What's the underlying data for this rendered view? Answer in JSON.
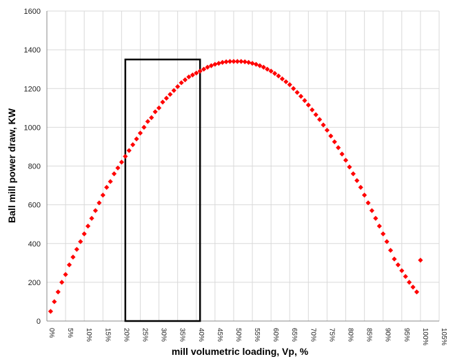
{
  "chart_data": {
    "type": "scatter",
    "title": "",
    "xlabel": "mill volumetric loading, Vp, %",
    "ylabel": "Ball mill power draw, KW",
    "xlim": [
      0,
      105
    ],
    "ylim": [
      0,
      1600
    ],
    "x_ticks": [
      "0%",
      "5%",
      "10%",
      "15%",
      "20%",
      "25%",
      "30%",
      "35%",
      "40%",
      "45%",
      "50%",
      "55%",
      "60%",
      "65%",
      "70%",
      "75%",
      "80%",
      "85%",
      "90%",
      "95%",
      "100%",
      "105%"
    ],
    "y_ticks": [
      "0",
      "200",
      "400",
      "600",
      "800",
      "1000",
      "1200",
      "1400",
      "1600"
    ],
    "grid": true,
    "series": [
      {
        "marker": "diamond",
        "color": "#ff0000",
        "x": [
          1,
          2,
          3,
          4,
          5,
          6,
          7,
          8,
          9,
          10,
          11,
          12,
          13,
          14,
          15,
          16,
          17,
          18,
          19,
          20,
          21,
          22,
          23,
          24,
          25,
          26,
          27,
          28,
          29,
          30,
          31,
          32,
          33,
          34,
          35,
          36,
          37,
          38,
          39,
          40,
          41,
          42,
          43,
          44,
          45,
          46,
          47,
          48,
          49,
          50,
          51,
          52,
          53,
          54,
          55,
          56,
          57,
          58,
          59,
          60,
          61,
          62,
          63,
          64,
          65,
          66,
          67,
          68,
          69,
          70,
          71,
          72,
          73,
          74,
          75,
          76,
          77,
          78,
          79,
          80,
          81,
          82,
          83,
          84,
          85,
          86,
          87,
          88,
          89,
          90,
          91,
          92,
          93,
          94,
          95,
          96,
          97,
          98,
          99,
          100
        ],
        "y": [
          50,
          100,
          150,
          200,
          240,
          290,
          330,
          370,
          410,
          450,
          490,
          530,
          570,
          610,
          650,
          690,
          720,
          760,
          790,
          820,
          850,
          880,
          910,
          940,
          970,
          1000,
          1030,
          1050,
          1080,
          1100,
          1130,
          1150,
          1170,
          1190,
          1210,
          1230,
          1245,
          1260,
          1270,
          1280,
          1290,
          1300,
          1310,
          1318,
          1325,
          1330,
          1335,
          1338,
          1340,
          1340,
          1340,
          1340,
          1338,
          1335,
          1330,
          1325,
          1318,
          1310,
          1300,
          1290,
          1278,
          1265,
          1250,
          1235,
          1220,
          1200,
          1180,
          1160,
          1138,
          1115,
          1090,
          1065,
          1040,
          1012,
          985,
          955,
          925,
          895,
          862,
          830,
          795,
          760,
          725,
          690,
          650,
          610,
          570,
          530,
          490,
          450,
          410,
          365,
          320,
          290,
          260,
          230,
          200,
          175,
          150,
          314
        ]
      }
    ],
    "annotations": [
      {
        "shape": "rectangle",
        "color": "#000000",
        "x0": 21,
        "x1": 41,
        "y0": 0,
        "y1": 1350
      }
    ]
  }
}
